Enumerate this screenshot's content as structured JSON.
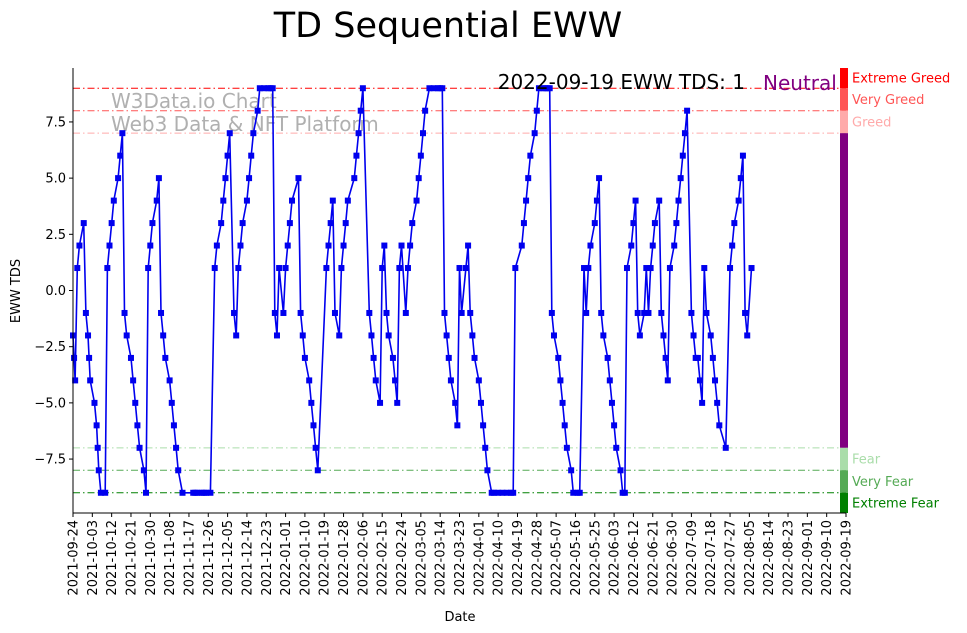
{
  "chart_data": {
    "type": "line",
    "title": "TD Sequential EWW",
    "xlabel": "Date",
    "ylabel": "EWW TDS",
    "ylim": [
      -9.9,
      9.9
    ],
    "yticks": [
      -7.5,
      -5.0,
      -2.5,
      0.0,
      2.5,
      5.0,
      7.5
    ],
    "ytick_labels": [
      "−7.5",
      "−5.0",
      "−2.5",
      "0.0",
      "2.5",
      "5.0",
      "7.5"
    ],
    "x_range_days": [
      0,
      360
    ],
    "xtick_days": [
      0,
      9,
      18,
      27,
      36,
      45,
      54,
      63,
      72,
      81,
      90,
      99,
      108,
      117,
      126,
      135,
      144,
      153,
      162,
      171,
      180,
      189,
      198,
      207,
      216,
      225,
      234,
      243,
      252,
      261,
      270,
      279,
      288,
      297,
      306,
      315,
      324,
      333,
      342,
      351,
      360
    ],
    "xtick_labels": [
      "2021-09-24",
      "2021-10-03",
      "2021-10-12",
      "2021-10-21",
      "2021-10-30",
      "2021-11-08",
      "2021-11-17",
      "2021-11-26",
      "2021-12-05",
      "2021-12-14",
      "2021-12-23",
      "2022-01-01",
      "2022-01-10",
      "2022-01-19",
      "2022-01-28",
      "2022-02-06",
      "2022-02-15",
      "2022-02-24",
      "2022-03-05",
      "2022-03-14",
      "2022-03-23",
      "2022-04-01",
      "2022-04-10",
      "2022-04-19",
      "2022-04-28",
      "2022-05-07",
      "2022-05-16",
      "2022-05-25",
      "2022-06-03",
      "2022-06-12",
      "2022-06-21",
      "2022-06-30",
      "2022-07-09",
      "2022-07-18",
      "2022-07-27",
      "2022-08-05",
      "2022-08-14",
      "2022-08-23",
      "2022-09-01",
      "2022-09-10",
      "2022-09-19"
    ],
    "series": [
      {
        "name": "EWW TDS",
        "color": "#0000ee",
        "points": [
          [
            0,
            -2
          ],
          [
            0.5,
            -3
          ],
          [
            1,
            -4
          ],
          [
            2,
            1
          ],
          [
            3,
            2
          ],
          [
            5,
            3
          ],
          [
            6,
            -1
          ],
          [
            7,
            -2
          ],
          [
            7.5,
            -3
          ],
          [
            8,
            -4
          ],
          [
            10,
            -5
          ],
          [
            11,
            -6
          ],
          [
            11.5,
            -7
          ],
          [
            12,
            -8
          ],
          [
            13,
            -9
          ],
          [
            15,
            -9
          ],
          [
            16,
            1
          ],
          [
            17,
            2
          ],
          [
            18,
            3
          ],
          [
            19,
            4
          ],
          [
            21,
            5
          ],
          [
            22,
            6
          ],
          [
            23,
            7
          ],
          [
            24,
            -1
          ],
          [
            25,
            -2
          ],
          [
            27,
            -3
          ],
          [
            28,
            -4
          ],
          [
            29,
            -5
          ],
          [
            30,
            -6
          ],
          [
            31,
            -7
          ],
          [
            33,
            -8
          ],
          [
            34,
            -9
          ],
          [
            35,
            1
          ],
          [
            36,
            2
          ],
          [
            37,
            3
          ],
          [
            39,
            4
          ],
          [
            40,
            5
          ],
          [
            41,
            -1
          ],
          [
            42,
            -2
          ],
          [
            43,
            -3
          ],
          [
            45,
            -4
          ],
          [
            46,
            -5
          ],
          [
            47,
            -6
          ],
          [
            48,
            -7
          ],
          [
            49,
            -8
          ],
          [
            51,
            -9
          ],
          [
            56,
            -9
          ],
          [
            57,
            -9
          ],
          [
            58,
            -9
          ],
          [
            60,
            -9
          ],
          [
            61,
            -9
          ],
          [
            62,
            -9
          ],
          [
            64,
            -9
          ],
          [
            66,
            1
          ],
          [
            67,
            2
          ],
          [
            69,
            3
          ],
          [
            70,
            4
          ],
          [
            71,
            5
          ],
          [
            72,
            6
          ],
          [
            73,
            7
          ],
          [
            75,
            -1
          ],
          [
            76,
            -2
          ],
          [
            77,
            1
          ],
          [
            78,
            2
          ],
          [
            79,
            3
          ],
          [
            81,
            4
          ],
          [
            82,
            5
          ],
          [
            83,
            6
          ],
          [
            84,
            7
          ],
          [
            86,
            8
          ],
          [
            87,
            9
          ],
          [
            89,
            9
          ],
          [
            91,
            9
          ],
          [
            92,
            9
          ],
          [
            93,
            9
          ],
          [
            94,
            -1
          ],
          [
            95,
            -2
          ],
          [
            96,
            1
          ],
          [
            98,
            -1
          ],
          [
            99,
            1
          ],
          [
            100,
            2
          ],
          [
            101,
            3
          ],
          [
            102,
            4
          ],
          [
            105,
            5
          ],
          [
            106,
            -1
          ],
          [
            107,
            -2
          ],
          [
            108,
            -3
          ],
          [
            110,
            -4
          ],
          [
            111,
            -5
          ],
          [
            112,
            -6
          ],
          [
            113,
            -7
          ],
          [
            114,
            -8
          ],
          [
            118,
            1
          ],
          [
            119,
            2
          ],
          [
            120,
            3
          ],
          [
            121,
            4
          ],
          [
            122,
            -1
          ],
          [
            124,
            -2
          ],
          [
            125,
            1
          ],
          [
            126,
            2
          ],
          [
            127,
            3
          ],
          [
            128,
            4
          ],
          [
            131,
            5
          ],
          [
            132,
            6
          ],
          [
            133,
            7
          ],
          [
            134,
            8
          ],
          [
            135,
            9
          ],
          [
            138,
            -1
          ],
          [
            139,
            -2
          ],
          [
            140,
            -3
          ],
          [
            141,
            -4
          ],
          [
            143,
            -5
          ],
          [
            144,
            1
          ],
          [
            145,
            2
          ],
          [
            146,
            -1
          ],
          [
            147,
            -2
          ],
          [
            149,
            -3
          ],
          [
            150,
            -4
          ],
          [
            151,
            -5
          ],
          [
            152,
            1
          ],
          [
            153,
            2
          ],
          [
            155,
            -1
          ],
          [
            156,
            1
          ],
          [
            157,
            2
          ],
          [
            158,
            3
          ],
          [
            160,
            4
          ],
          [
            161,
            5
          ],
          [
            162,
            6
          ],
          [
            163,
            7
          ],
          [
            164,
            8
          ],
          [
            166,
            9
          ],
          [
            168,
            9
          ],
          [
            170,
            9
          ],
          [
            171,
            9
          ],
          [
            172,
            9
          ],
          [
            173,
            -1
          ],
          [
            174,
            -2
          ],
          [
            175,
            -3
          ],
          [
            176,
            -4
          ],
          [
            178,
            -5
          ],
          [
            179,
            -6
          ],
          [
            180,
            1
          ],
          [
            181,
            -1
          ],
          [
            183,
            1
          ],
          [
            184,
            2
          ],
          [
            185,
            -1
          ],
          [
            186,
            -2
          ],
          [
            187,
            -3
          ],
          [
            189,
            -4
          ],
          [
            190,
            -5
          ],
          [
            191,
            -6
          ],
          [
            192,
            -7
          ],
          [
            193,
            -8
          ],
          [
            195,
            -9
          ],
          [
            196,
            -9
          ],
          [
            198,
            -9
          ],
          [
            200,
            -9
          ],
          [
            202,
            -9
          ],
          [
            204,
            -9
          ],
          [
            205,
            -9
          ],
          [
            206,
            1
          ],
          [
            209,
            2
          ],
          [
            210,
            3
          ],
          [
            211,
            4
          ],
          [
            212,
            5
          ],
          [
            213,
            6
          ],
          [
            215,
            7
          ],
          [
            216,
            8
          ],
          [
            217,
            9
          ],
          [
            219,
            9
          ],
          [
            220,
            9
          ],
          [
            221,
            9
          ],
          [
            222,
            9
          ],
          [
            223,
            -1
          ],
          [
            224,
            -2
          ],
          [
            226,
            -3
          ],
          [
            227,
            -4
          ],
          [
            228,
            -5
          ],
          [
            229,
            -6
          ],
          [
            230,
            -7
          ],
          [
            232,
            -8
          ],
          [
            233,
            -9
          ],
          [
            235,
            -9
          ],
          [
            236,
            -9
          ],
          [
            238,
            1
          ],
          [
            239,
            -1
          ],
          [
            240,
            1
          ],
          [
            241,
            2
          ],
          [
            243,
            3
          ],
          [
            244,
            4
          ],
          [
            245,
            5
          ],
          [
            246,
            -1
          ],
          [
            247,
            -2
          ],
          [
            249,
            -3
          ],
          [
            250,
            -4
          ],
          [
            251,
            -5
          ],
          [
            252,
            -6
          ],
          [
            253,
            -7
          ],
          [
            255,
            -8
          ],
          [
            256,
            -9
          ],
          [
            257,
            -9
          ],
          [
            258,
            1
          ],
          [
            260,
            2
          ],
          [
            261,
            3
          ],
          [
            262,
            4
          ],
          [
            263,
            -1
          ],
          [
            264,
            -2
          ],
          [
            266,
            -1
          ],
          [
            267,
            1
          ],
          [
            268,
            -1
          ],
          [
            269,
            1
          ],
          [
            270,
            2
          ],
          [
            271,
            3
          ],
          [
            273,
            4
          ],
          [
            274,
            -1
          ],
          [
            275,
            -2
          ],
          [
            276,
            -3
          ],
          [
            277,
            -4
          ],
          [
            278,
            1
          ],
          [
            280,
            2
          ],
          [
            281,
            3
          ],
          [
            282,
            4
          ],
          [
            283,
            5
          ],
          [
            284,
            6
          ],
          [
            285,
            7
          ],
          [
            286,
            8
          ],
          [
            288,
            -1
          ],
          [
            289,
            -2
          ],
          [
            290,
            -3
          ],
          [
            291,
            -3
          ],
          [
            292,
            -4
          ],
          [
            293,
            -5
          ],
          [
            294,
            1
          ],
          [
            295,
            -1
          ],
          [
            297,
            -2
          ],
          [
            298,
            -3
          ],
          [
            299,
            -4
          ],
          [
            300,
            -5
          ],
          [
            301,
            -6
          ],
          [
            304,
            -7
          ],
          [
            306,
            1
          ],
          [
            307,
            2
          ],
          [
            308,
            3
          ],
          [
            310,
            4
          ],
          [
            311,
            5
          ],
          [
            312,
            6
          ],
          [
            313,
            -1
          ],
          [
            314,
            -2
          ],
          [
            316,
            1
          ]
        ]
      }
    ],
    "reference_lines": [
      {
        "name": "extreme-greed-line",
        "y": 9,
        "color": "#ff0000"
      },
      {
        "name": "very-greed-line",
        "y": 8,
        "color": "#ff5555"
      },
      {
        "name": "greed-line",
        "y": 7,
        "color": "#ffaaaa"
      },
      {
        "name": "fear-line",
        "y": -7,
        "color": "#aaddaa"
      },
      {
        "name": "very-fear-line",
        "y": -8,
        "color": "#55aa55"
      },
      {
        "name": "extreme-fear-line",
        "y": -9,
        "color": "#008000"
      }
    ],
    "zones": [
      {
        "name": "extreme-greed",
        "label": "Extreme Greed",
        "from": 9,
        "to": 9.9,
        "color": "#ff0000",
        "text_color": "#ff0000"
      },
      {
        "name": "very-greed",
        "label": "Very Greed",
        "from": 8,
        "to": 9,
        "color": "#ff5555",
        "text_color": "#ff5555"
      },
      {
        "name": "greed",
        "label": "Greed",
        "from": 7,
        "to": 8,
        "color": "#ffaaaa",
        "text_color": "#ffaaaa"
      },
      {
        "name": "neutral",
        "label": "",
        "from": -7,
        "to": 7,
        "color": "#800080",
        "text_color": "#800080"
      },
      {
        "name": "fear",
        "label": "Fear",
        "from": -8,
        "to": -7,
        "color": "#aaddaa",
        "text_color": "#aaddaa"
      },
      {
        "name": "very-fear",
        "label": "Very Fear",
        "from": -9,
        "to": -8,
        "color": "#55aa55",
        "text_color": "#55aa55"
      },
      {
        "name": "extreme-fear",
        "label": "Extreme Fear",
        "from": -9.9,
        "to": -9,
        "color": "#008000",
        "text_color": "#008000"
      }
    ],
    "annotation": {
      "text": "2022-09-19 EWW TDS: 1",
      "status": "Neutral",
      "status_color": "#800080"
    },
    "watermark": {
      "line1": "W3Data.io Chart",
      "line2": "Web3 Data & NFT Platform"
    },
    "grid": false,
    "legend": "none"
  }
}
